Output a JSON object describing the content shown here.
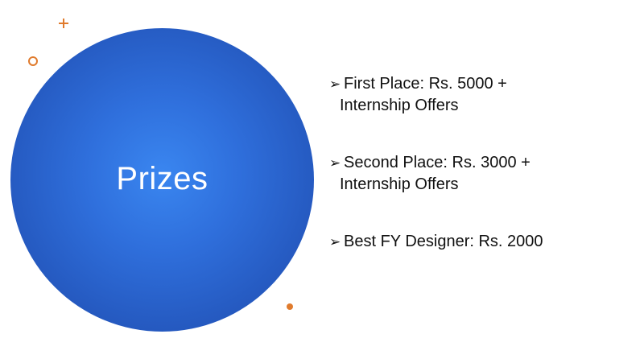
{
  "slide": {
    "title": "Prizes",
    "bullet_icon": "arrow-right-icon",
    "accent_color": "#e07b2d",
    "circle_color": "#2f6fdc",
    "prizes": [
      {
        "line1": "First Place: Rs. 5000 +",
        "line2": "Internship Offers"
      },
      {
        "line1": "Second Place: Rs. 3000 +",
        "line2": "Internship Offers"
      },
      {
        "line1": "Best FY Designer: Rs. 2000",
        "line2": ""
      }
    ]
  }
}
